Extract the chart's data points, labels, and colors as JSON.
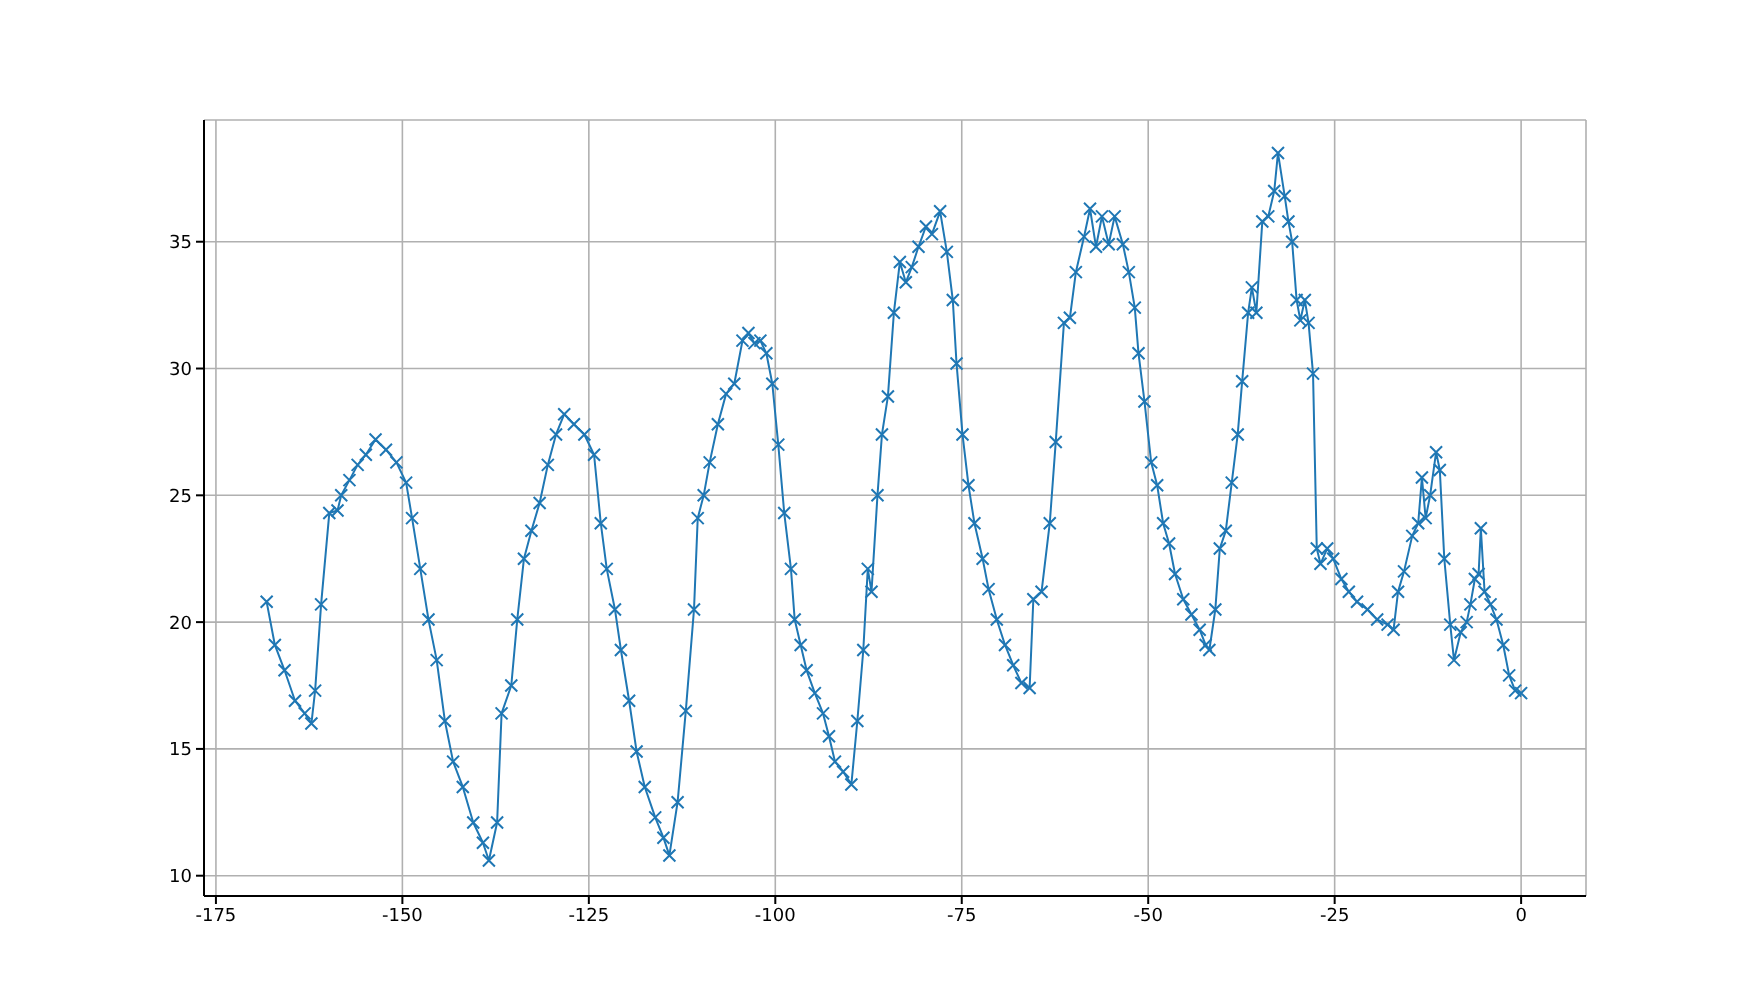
{
  "chart_data": {
    "type": "line",
    "x": [
      -168.2,
      -167.1,
      -165.8,
      -164.4,
      -163.1,
      -162.2,
      -161.7,
      -160.9,
      -159.8,
      -158.7,
      -158.2,
      -157.1,
      -156.0,
      -154.9,
      -153.6,
      -152.2,
      -150.8,
      -149.5,
      -148.7,
      -147.6,
      -146.5,
      -145.4,
      -144.3,
      -143.2,
      -141.9,
      -140.5,
      -139.2,
      -138.4,
      -137.3,
      -136.7,
      -135.4,
      -134.6,
      -133.7,
      -132.7,
      -131.6,
      -130.5,
      -129.4,
      -128.3,
      -127.0,
      -125.6,
      -124.3,
      -123.4,
      -122.6,
      -121.5,
      -120.7,
      -119.6,
      -118.6,
      -117.5,
      -116.1,
      -115.0,
      -114.2,
      -113.1,
      -112.0,
      -110.9,
      -110.4,
      -109.6,
      -108.8,
      -107.7,
      -106.6,
      -105.5,
      -104.4,
      -103.6,
      -102.8,
      -102.0,
      -101.2,
      -100.4,
      -99.6,
      -98.8,
      -97.9,
      -97.4,
      -96.6,
      -95.8,
      -94.7,
      -93.6,
      -92.8,
      -92.0,
      -90.9,
      -89.8,
      -89.0,
      -88.2,
      -87.6,
      -87.1,
      -86.3,
      -85.7,
      -84.9,
      -84.1,
      -83.3,
      -82.5,
      -81.7,
      -80.8,
      -79.8,
      -79.0,
      -77.9,
      -77.0,
      -76.2,
      -75.7,
      -74.9,
      -74.1,
      -73.3,
      -72.2,
      -71.4,
      -70.3,
      -69.2,
      -68.1,
      -67.0,
      -65.9,
      -65.4,
      -64.3,
      -63.2,
      -62.4,
      -61.3,
      -60.5,
      -59.7,
      -58.6,
      -57.8,
      -57.0,
      -56.2,
      -55.3,
      -54.5,
      -53.4,
      -52.6,
      -51.8,
      -51.3,
      -50.5,
      -49.6,
      -48.8,
      -48.0,
      -47.2,
      -46.4,
      -45.3,
      -44.2,
      -43.1,
      -42.3,
      -41.8,
      -41.0,
      -40.4,
      -39.6,
      -38.8,
      -38.0,
      -37.4,
      -36.6,
      -36.1,
      -35.5,
      -34.7,
      -33.9,
      -33.1,
      -32.6,
      -31.7,
      -31.2,
      -30.7,
      -30.1,
      -29.6,
      -29.0,
      -28.5,
      -27.9,
      -27.4,
      -26.9,
      -26.0,
      -25.2,
      -24.1,
      -23.1,
      -22.0,
      -20.6,
      -19.3,
      -17.9,
      -17.1,
      -16.5,
      -15.7,
      -14.6,
      -13.8,
      -13.3,
      -12.8,
      -12.2,
      -11.4,
      -10.9,
      -10.3,
      -9.5,
      -9.0,
      -8.1,
      -7.3,
      -6.8,
      -6.2,
      -5.7,
      -5.4,
      -4.9,
      -4.1,
      -3.3,
      -2.4,
      -1.6,
      -0.8,
      0
    ],
    "series": [
      {
        "color": "#1f77b4",
        "values": [
          20.8,
          19.1,
          18.1,
          16.9,
          16.4,
          16.0,
          17.3,
          20.7,
          24.3,
          24.4,
          25.0,
          25.6,
          26.2,
          26.6,
          27.2,
          26.8,
          26.3,
          25.5,
          24.1,
          22.1,
          20.1,
          18.5,
          16.1,
          14.5,
          13.5,
          12.1,
          11.3,
          10.6,
          12.1,
          16.4,
          17.5,
          20.1,
          22.5,
          23.6,
          24.7,
          26.2,
          27.4,
          28.2,
          27.8,
          27.4,
          26.6,
          23.9,
          22.1,
          20.5,
          18.9,
          16.9,
          14.9,
          13.5,
          12.3,
          11.5,
          10.8,
          12.9,
          16.5,
          20.5,
          24.1,
          25.0,
          26.3,
          27.8,
          29.0,
          29.4,
          31.1,
          31.4,
          31.0,
          31.1,
          30.6,
          29.4,
          27.0,
          24.3,
          22.1,
          20.1,
          19.1,
          18.1,
          17.2,
          16.4,
          15.5,
          14.5,
          14.1,
          13.6,
          16.1,
          18.9,
          22.1,
          21.2,
          25.0,
          27.4,
          28.9,
          32.2,
          34.2,
          33.4,
          34.0,
          34.8,
          35.6,
          35.3,
          36.2,
          34.6,
          32.7,
          30.2,
          27.4,
          25.4,
          23.9,
          22.5,
          21.3,
          20.1,
          19.1,
          18.3,
          17.6,
          17.4,
          20.9,
          21.2,
          23.9,
          27.1,
          31.8,
          32.0,
          33.8,
          35.2,
          36.3,
          34.8,
          36.0,
          34.9,
          36.0,
          34.9,
          33.8,
          32.4,
          30.6,
          28.7,
          26.3,
          25.4,
          23.9,
          23.1,
          21.9,
          20.9,
          20.3,
          19.7,
          19.1,
          18.9,
          20.5,
          22.9,
          23.6,
          25.5,
          27.4,
          29.5,
          32.2,
          33.2,
          32.2,
          35.8,
          36.0,
          37.0,
          38.5,
          36.8,
          35.8,
          35.0,
          32.7,
          31.9,
          32.7,
          31.8,
          29.8,
          22.9,
          22.3,
          22.9,
          22.5,
          21.7,
          21.2,
          20.8,
          20.5,
          20.1,
          19.9,
          19.7,
          21.2,
          22.0,
          23.4,
          23.9,
          25.7,
          24.1,
          25.0,
          26.7,
          26.0,
          22.5,
          19.9,
          18.5,
          19.6,
          20.0,
          20.7,
          21.7,
          21.9,
          23.7,
          21.2,
          20.7,
          20.1,
          19.1,
          17.9,
          17.3,
          17.2
        ]
      }
    ],
    "xlim": [
      -176.6,
      8.7
    ],
    "ylim": [
      9.2,
      39.8
    ],
    "xticks": [
      -175,
      -150,
      -125,
      -100,
      -75,
      -50,
      -25,
      0
    ],
    "yticks": [
      10,
      15,
      20,
      25,
      30,
      35
    ],
    "grid": true,
    "marker": "cross",
    "line_style": "solid"
  }
}
